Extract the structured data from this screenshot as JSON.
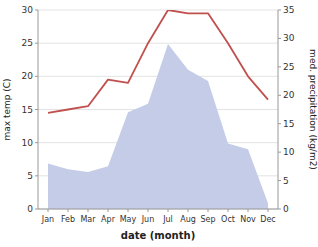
{
  "chart_data": {
    "type": "line",
    "x_label": "date (month)",
    "y_label": "max temp (C)",
    "y2_label": "med. precipitation (kg/m2)",
    "categories": [
      "Jan",
      "Feb",
      "Mar",
      "Apr",
      "May",
      "Jun",
      "Jul",
      "Aug",
      "Sep",
      "Oct",
      "Nov",
      "Dec"
    ],
    "series": [
      {
        "type": "area",
        "color": "#c5cce8",
        "axis": "y2",
        "values": [
          8.0,
          7.0,
          6.5,
          7.5,
          17.0,
          18.5,
          29.0,
          24.5,
          22.5,
          11.5,
          10.5,
          1.0
        ]
      },
      {
        "type": "line",
        "color": "#c0504d",
        "values": [
          14.5,
          15.0,
          15.5,
          19.5,
          19.0,
          25.0,
          30.0,
          29.5,
          29.5,
          25.0,
          20.0,
          16.5
        ]
      }
    ],
    "ylim": [
      0,
      30
    ],
    "yticks": [
      0,
      5,
      10,
      15,
      20,
      25,
      30
    ],
    "y2lim": [
      0,
      35
    ],
    "y2ticks": [
      0,
      5,
      10,
      15,
      20,
      25,
      30,
      35
    ],
    "grid": true
  }
}
